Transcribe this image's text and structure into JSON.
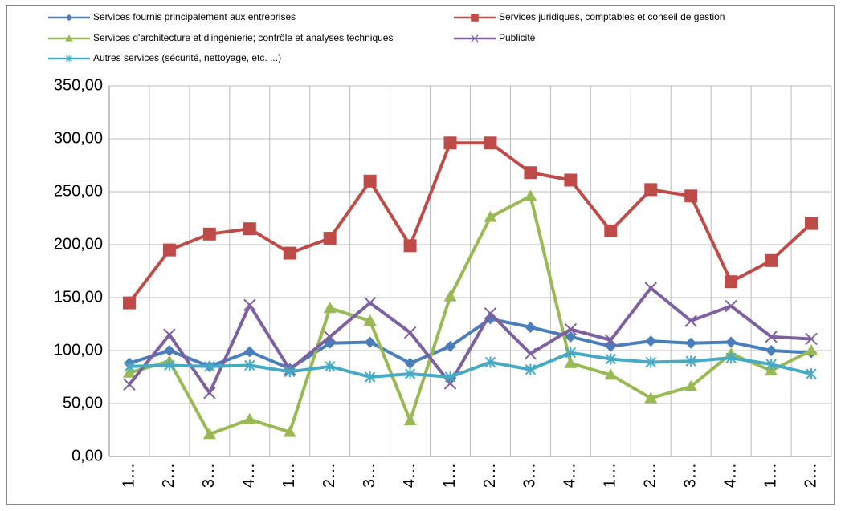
{
  "chart_data": {
    "type": "line",
    "categories": [
      "1…",
      "2…",
      "3…",
      "4…",
      "1…",
      "2…",
      "3…",
      "4…",
      "1…",
      "2…",
      "3…",
      "4…",
      "1…",
      "2…",
      "3…",
      "4…",
      "1…",
      "2…"
    ],
    "series": [
      {
        "name": "Services fournis principalement aux entreprises",
        "color": "#4a7ebb",
        "marker": "diamond",
        "values": [
          88,
          100,
          85,
          99,
          83,
          107,
          108,
          88,
          104,
          130,
          122,
          113,
          104,
          109,
          107,
          108,
          100,
          98
        ]
      },
      {
        "name": "Services juridiques, comptables et conseil de gestion",
        "color": "#be4b48",
        "marker": "square",
        "values": [
          145,
          195,
          210,
          215,
          192,
          206,
          260,
          199,
          296,
          296,
          268,
          261,
          213,
          252,
          246,
          165,
          185,
          220
        ]
      },
      {
        "name": "Services d'architecture et d'ingénierie; contrôle et analyses techniques",
        "color": "#98b954",
        "marker": "triangle",
        "values": [
          79,
          90,
          21,
          35,
          23,
          140,
          128,
          34,
          151,
          226,
          246,
          88,
          77,
          55,
          66,
          97,
          81,
          100
        ]
      },
      {
        "name": "Publicité",
        "color": "#7d60a0",
        "marker": "x",
        "values": [
          68,
          115,
          60,
          143,
          82,
          113,
          145,
          117,
          69,
          135,
          97,
          120,
          110,
          159,
          128,
          142,
          113,
          111
        ]
      },
      {
        "name": "Autres services (sécurité, nettoyage, etc. ...)",
        "color": "#46aac5",
        "marker": "star",
        "values": [
          85,
          86,
          85,
          86,
          80,
          85,
          75,
          78,
          75,
          89,
          82,
          98,
          92,
          89,
          90,
          93,
          87,
          78
        ]
      }
    ],
    "ylim": [
      0,
      350
    ],
    "yticks": [
      {
        "value": 0,
        "label": "0,00"
      },
      {
        "value": 50,
        "label": "50,00"
      },
      {
        "value": 100,
        "label": "100,00"
      },
      {
        "value": 150,
        "label": "150,00"
      },
      {
        "value": 200,
        "label": "200,00"
      },
      {
        "value": 250,
        "label": "250,00"
      },
      {
        "value": 300,
        "label": "300,00"
      },
      {
        "value": 350,
        "label": "350,00"
      }
    ],
    "grid": true,
    "legend": "top"
  }
}
